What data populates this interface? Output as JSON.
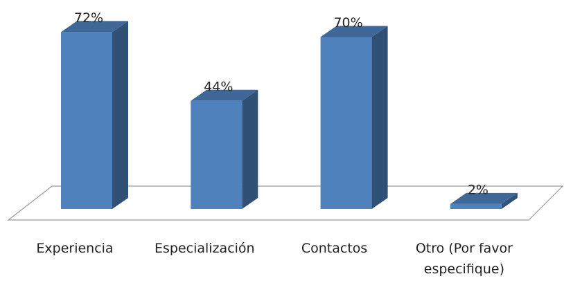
{
  "chart_data": {
    "type": "bar3d",
    "categories": [
      "Experiencia",
      "Especialización",
      "Contactos",
      "Otro (Por favor especifique)"
    ],
    "values": [
      72,
      44,
      70,
      2
    ],
    "value_labels": [
      "72%",
      "44%",
      "70%",
      "2%"
    ],
    "color": "#4f81bd"
  }
}
